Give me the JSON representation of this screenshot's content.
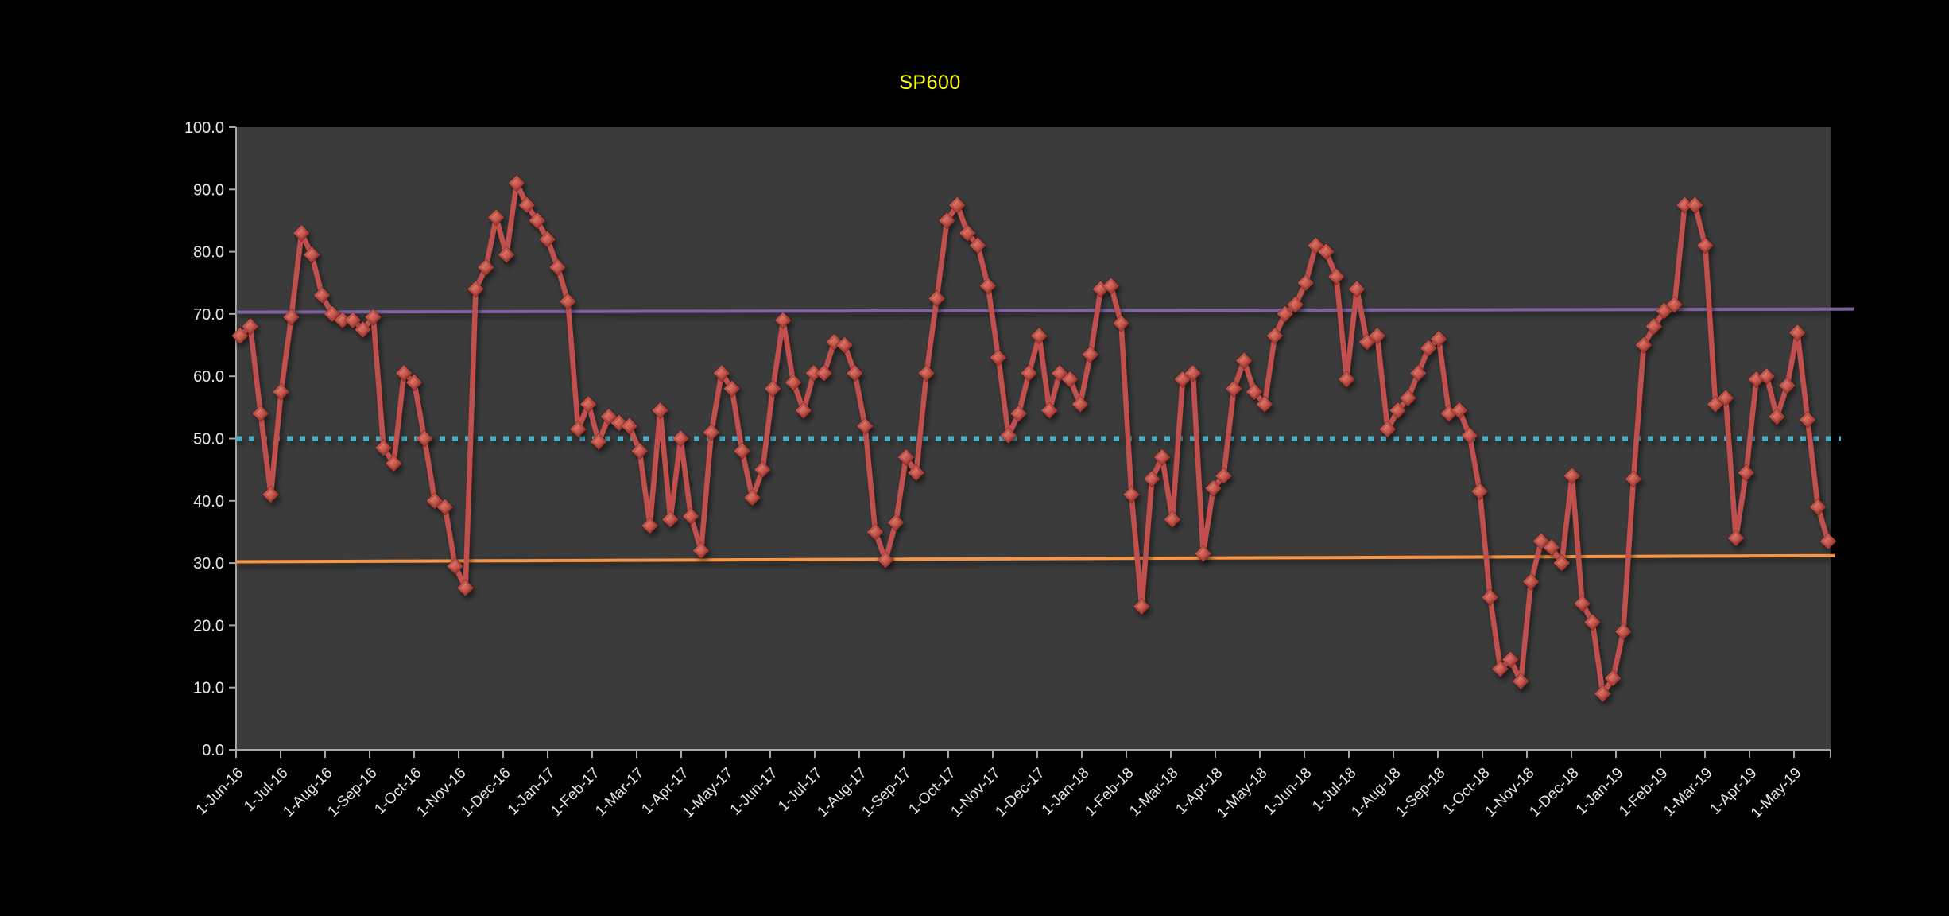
{
  "chart_data": {
    "type": "line",
    "title": "SP600",
    "title_color": "#FFFF00",
    "page_bg": "#000000",
    "plot_bg": "#3B3B3B",
    "axis_color": "#A6A6A6",
    "label_color": "#E8E8E8",
    "grid": "off",
    "legend": "none",
    "ylim": [
      0,
      100
    ],
    "y_tick_labels": [
      "0.0",
      "10.0",
      "20.0",
      "30.0",
      "40.0",
      "50.0",
      "60.0",
      "70.0",
      "80.0",
      "90.0",
      "100.0"
    ],
    "x_tick_labels": [
      "1-Jun-16",
      "1-Jul-16",
      "1-Aug-16",
      "1-Sep-16",
      "1-Oct-16",
      "1-Nov-16",
      "1-Dec-16",
      "1-Jan-17",
      "1-Feb-17",
      "1-Mar-17",
      "1-Apr-17",
      "1-May-17",
      "1-Jun-17",
      "1-Jul-17",
      "1-Aug-17",
      "1-Sep-17",
      "1-Oct-17",
      "1-Nov-17",
      "1-Dec-17",
      "1-Jan-18",
      "1-Feb-18",
      "1-Mar-18",
      "1-Apr-18",
      "1-May-18",
      "1-Jun-18",
      "1-Jul-18",
      "1-Aug-18",
      "1-Sep-18",
      "1-Oct-18",
      "1-Nov-18",
      "1-Dec-18",
      "1-Jan-19",
      "1-Feb-19",
      "1-Mar-19",
      "1-Apr-19",
      "1-May-19"
    ],
    "cadence": "weekly",
    "series": [
      {
        "name": "SP600",
        "kind": "data",
        "color": "#C0504D",
        "marker": "diamond",
        "values": [
          66.5,
          68,
          54,
          41,
          57.5,
          69.5,
          83,
          79.5,
          73,
          70,
          69,
          69,
          67.5,
          69.5,
          48.5,
          46,
          60.5,
          59,
          50,
          40,
          39,
          29.5,
          26,
          74,
          77.5,
          85.5,
          79.5,
          91,
          87.5,
          85,
          82,
          77.5,
          72,
          51.5,
          55.5,
          49.5,
          53.5,
          52.5,
          52,
          48,
          36,
          54.5,
          37,
          50,
          37.5,
          32,
          51,
          60.5,
          58,
          48,
          40.5,
          45,
          58,
          69,
          59,
          54.5,
          60.5,
          60.5,
          65.5,
          65,
          60.5,
          52,
          35,
          30.5,
          36.5,
          47,
          44.5,
          60.5,
          72.5,
          85,
          87.5,
          83,
          81,
          74.5,
          63,
          50.5,
          54,
          60.5,
          66.5,
          54.5,
          60.5,
          59.5,
          55.5,
          63.5,
          74,
          74.5,
          68.5,
          41,
          23,
          43.5,
          47,
          37,
          59.5,
          60.5,
          31.5,
          42,
          44,
          58,
          62.5,
          57.5,
          55.5,
          66.5,
          70,
          71.5,
          75,
          81,
          80,
          76,
          59.5,
          74,
          65.5,
          66.5,
          51.5,
          54.5,
          56.5,
          60.5,
          64.5,
          66,
          54,
          54.5,
          50.5,
          41.5,
          24.5,
          13,
          14.5,
          11,
          27,
          33.5,
          32.5,
          30,
          44,
          23.5,
          20.5,
          9,
          11.5,
          19,
          43.5,
          65,
          68,
          70.5,
          71.5,
          87.5,
          87.5,
          81,
          55.5,
          56.5,
          34,
          44.5,
          59.5,
          60,
          53.5,
          58.5,
          67,
          53,
          39,
          33.5
        ]
      },
      {
        "name": "upper-band",
        "kind": "refline",
        "color": "#8064A2",
        "dash": "solid",
        "width": 4,
        "values": [
          70.3,
          70.8
        ]
      },
      {
        "name": "center-band",
        "kind": "refline",
        "color": "#4BACC6",
        "dash": "dotted",
        "width": 6,
        "values": [
          50,
          50
        ]
      },
      {
        "name": "lower-band",
        "kind": "refline",
        "color": "#F79646",
        "dash": "solid",
        "width": 4,
        "values": [
          30.2,
          31.2
        ]
      }
    ]
  }
}
